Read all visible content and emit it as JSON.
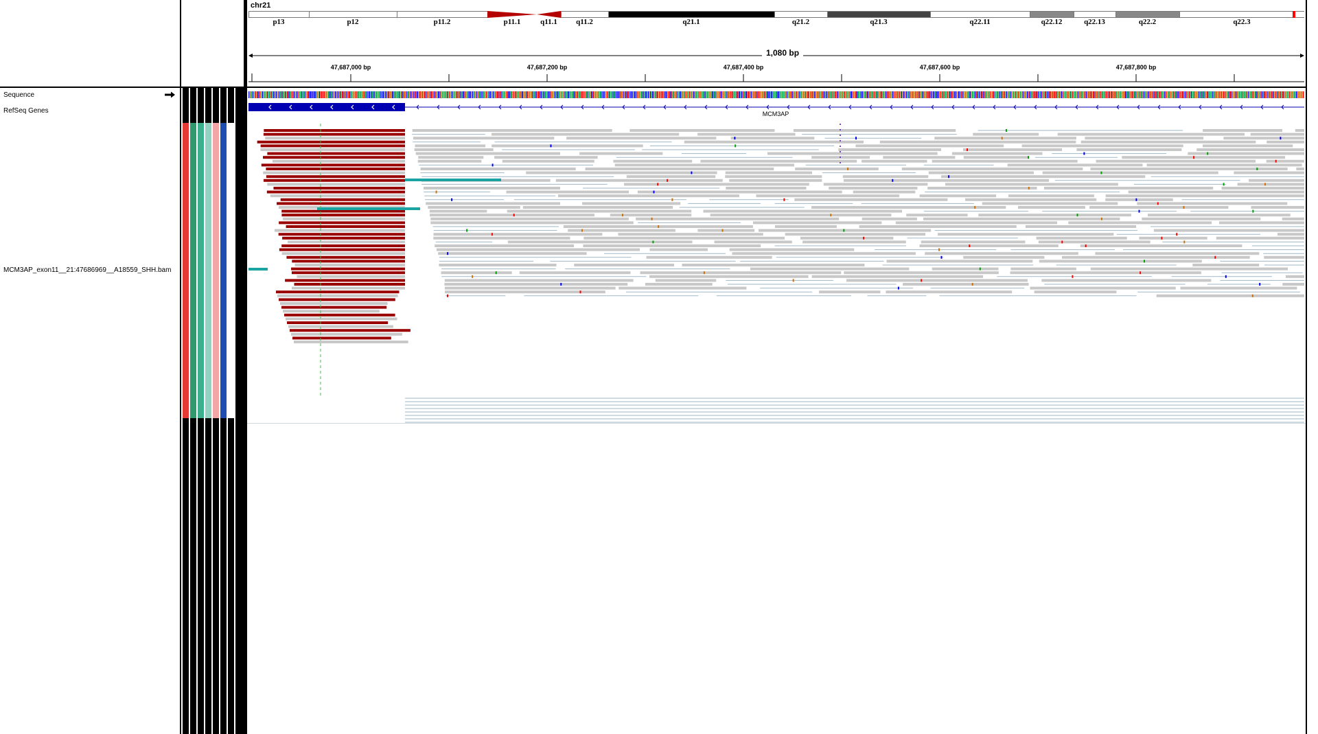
{
  "tracks": {
    "sequence_label": "Sequence",
    "refseq_label": "RefSeq Genes",
    "bam_label": "MCM3AP_exon11__21:47686969__A18559_SHH.bam"
  },
  "header": {
    "chromosome": "chr21",
    "span": "1,080 bp",
    "bands": [
      "p13",
      "p12",
      "p11.2",
      "p11.1",
      "q11.1",
      "q11.2",
      "q21.1",
      "q21.2",
      "q21.3",
      "q22.11",
      "q22.12",
      "q22.13",
      "q22.2",
      "q22.3"
    ],
    "ruler_labels": [
      "47,687,000 bp",
      "47,687,200 bp",
      "47,687,400 bp",
      "47,687,600 bp",
      "47,687,800 bp"
    ]
  },
  "gene": {
    "name": "MCM3AP"
  },
  "attribute_colors": [
    "#e53935",
    "#2e9a6e",
    "#3ab08c",
    "#8fd3c0",
    "#f4a6a6",
    "#1e4fb0",
    "#ffffff"
  ],
  "colors": {
    "read": "#c8c8c8",
    "softclip_read": "#990000",
    "exon": "#0000b2",
    "insertion_teal": "#1aa3a3"
  },
  "icons": {
    "sequence_arrow": "right-arrow-icon"
  }
}
